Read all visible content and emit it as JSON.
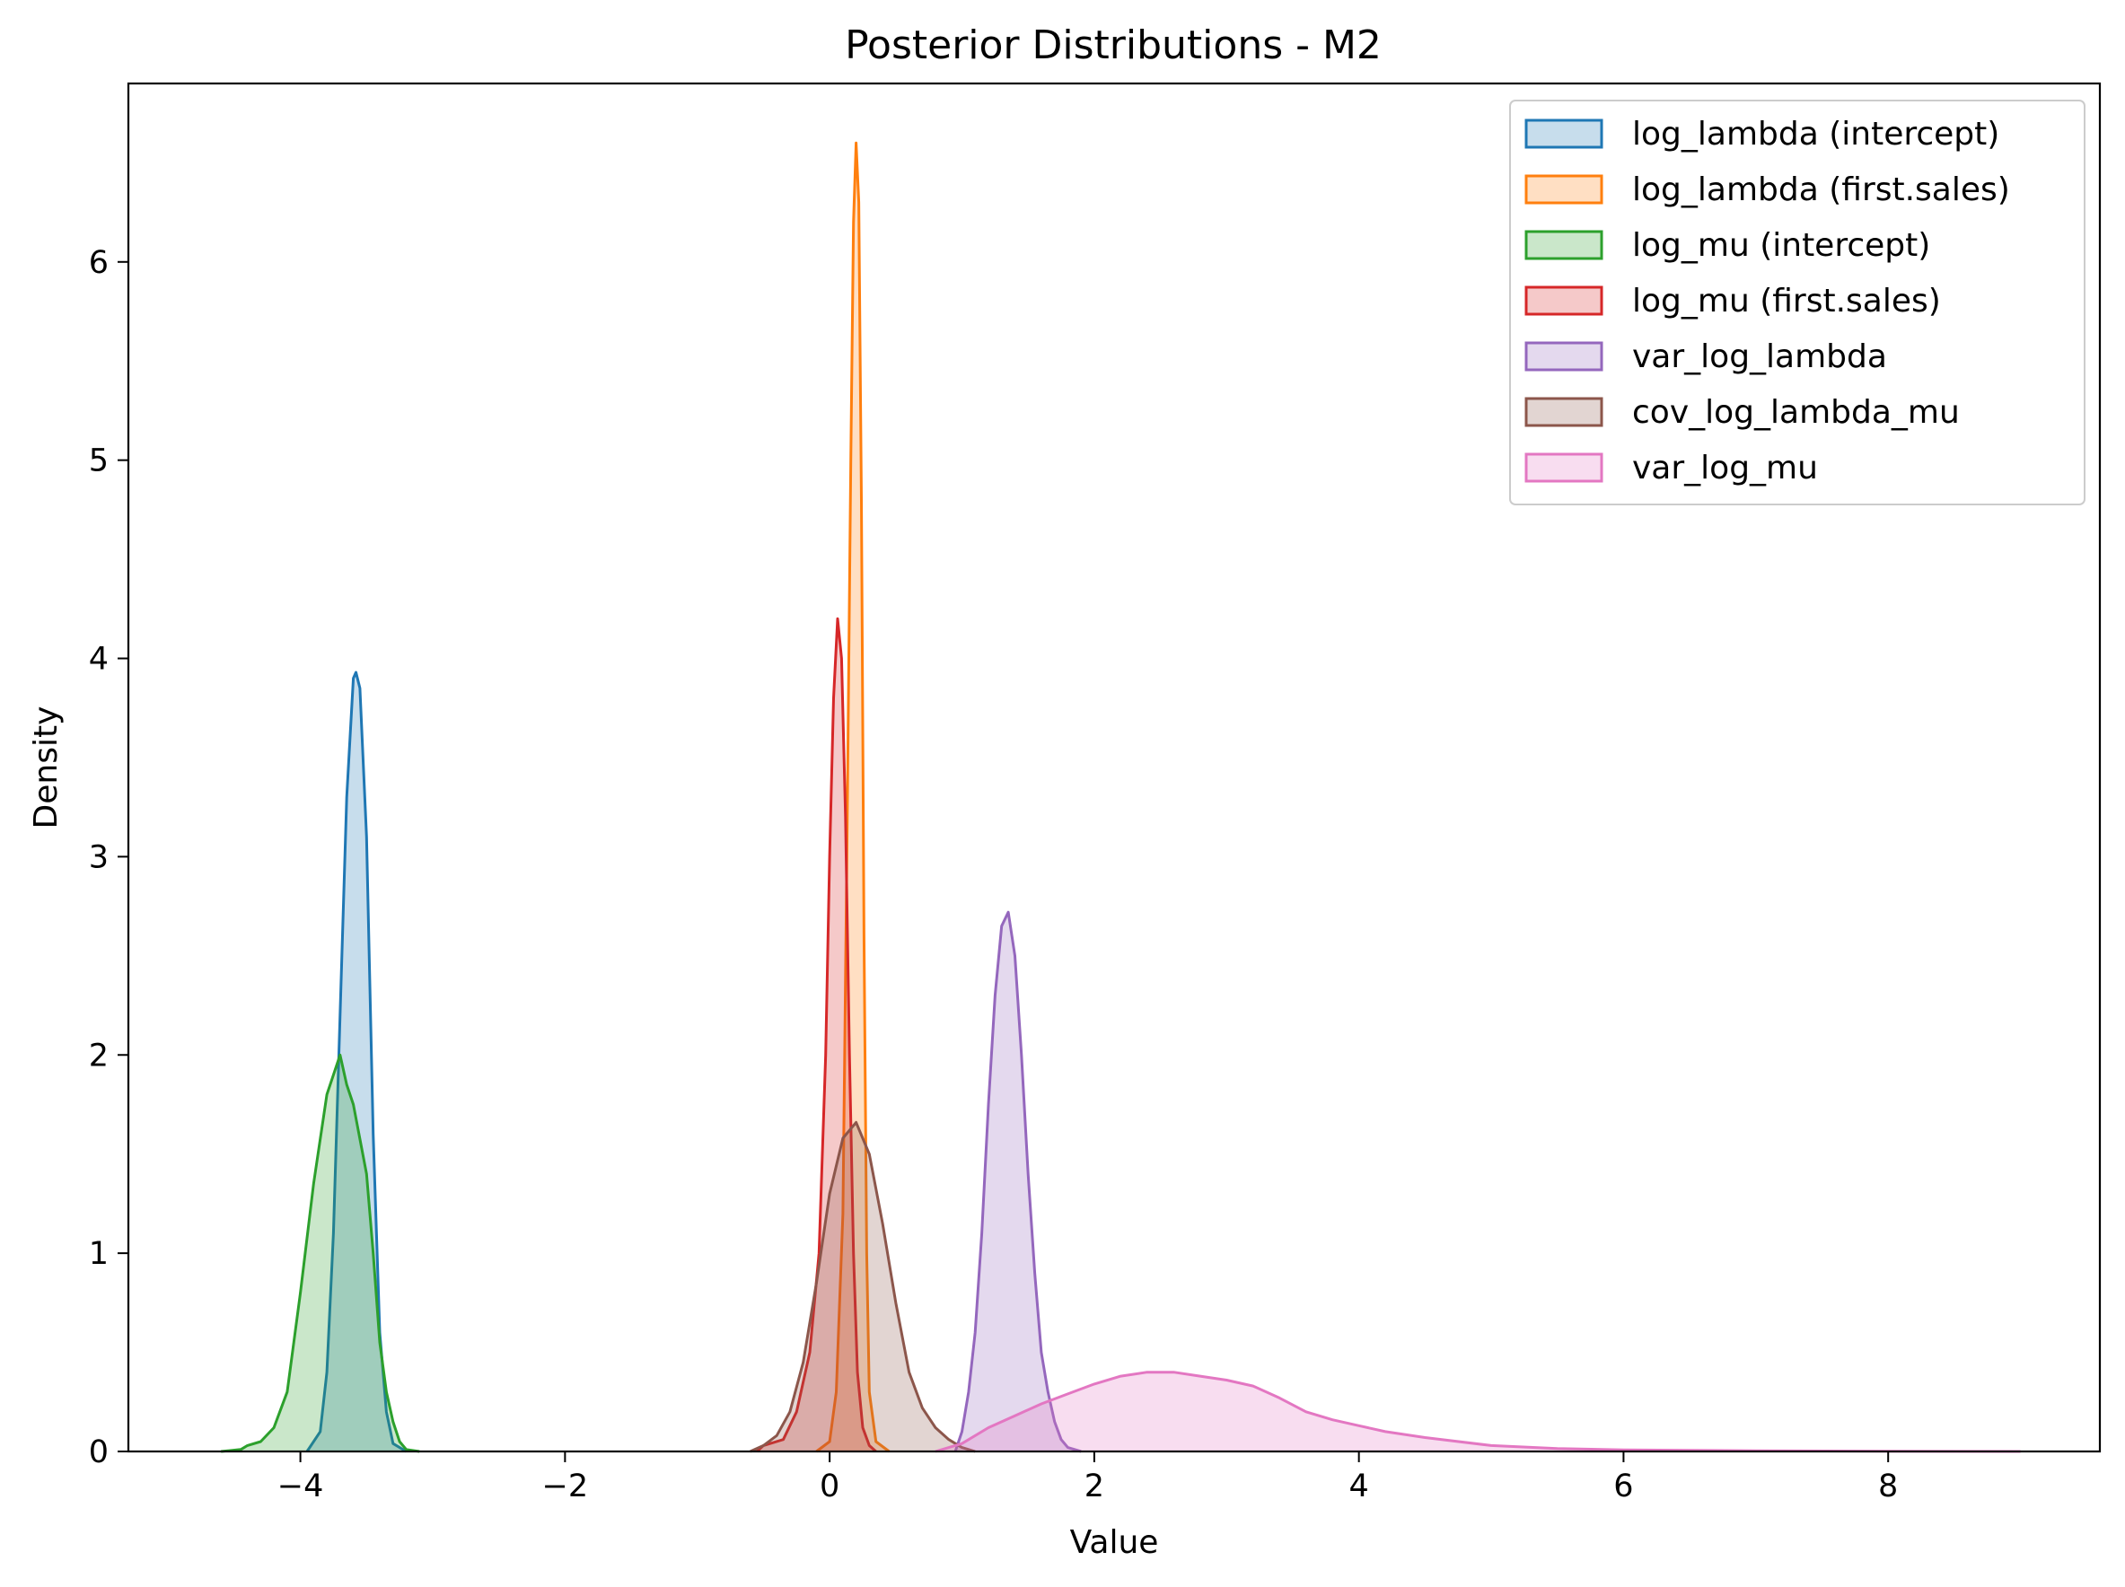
{
  "chart_data": {
    "type": "area",
    "title": "Posterior Distributions - M2",
    "xlabel": "Value",
    "ylabel": "Density",
    "xlim": [
      -5.3,
      9.6
    ],
    "ylim": [
      0,
      6.9
    ],
    "x_ticks": [
      -4,
      -2,
      0,
      2,
      4,
      6,
      8
    ],
    "x_tick_labels": [
      "−4",
      "−2",
      "0",
      "2",
      "4",
      "6",
      "8"
    ],
    "y_ticks": [
      0,
      1,
      2,
      3,
      4,
      5,
      6
    ],
    "y_tick_labels": [
      "0",
      "1",
      "2",
      "3",
      "4",
      "5",
      "6"
    ],
    "grid": false,
    "legend_position": "top-right",
    "series": [
      {
        "name": "log_lambda (intercept)",
        "color": "#1f77b4",
        "x": [
          -3.95,
          -3.85,
          -3.8,
          -3.75,
          -3.7,
          -3.65,
          -3.6,
          -3.58,
          -3.55,
          -3.5,
          -3.45,
          -3.4,
          -3.35,
          -3.3,
          -3.2
        ],
        "y": [
          0,
          0.1,
          0.4,
          1.1,
          2.2,
          3.3,
          3.9,
          3.93,
          3.85,
          3.1,
          1.6,
          0.6,
          0.2,
          0.04,
          0
        ]
      },
      {
        "name": "log_lambda (first.sales)",
        "color": "#ff7f0e",
        "x": [
          -0.1,
          0.0,
          0.05,
          0.1,
          0.13,
          0.16,
          0.18,
          0.2,
          0.22,
          0.24,
          0.26,
          0.28,
          0.3,
          0.35,
          0.45
        ],
        "y": [
          0,
          0.05,
          0.3,
          1.2,
          3.0,
          5.0,
          6.2,
          6.6,
          6.3,
          4.8,
          2.6,
          1.0,
          0.3,
          0.05,
          0
        ]
      },
      {
        "name": "log_mu (intercept)",
        "color": "#2ca02c",
        "x": [
          -4.6,
          -4.45,
          -4.4,
          -4.3,
          -4.2,
          -4.1,
          -4.0,
          -3.9,
          -3.8,
          -3.7,
          -3.65,
          -3.6,
          -3.5,
          -3.45,
          -3.4,
          -3.35,
          -3.3,
          -3.25,
          -3.2,
          -3.1
        ],
        "y": [
          0,
          0.01,
          0.03,
          0.05,
          0.12,
          0.3,
          0.8,
          1.35,
          1.8,
          2.0,
          1.85,
          1.75,
          1.4,
          1.0,
          0.55,
          0.3,
          0.15,
          0.05,
          0.01,
          0
        ]
      },
      {
        "name": "log_mu (first.sales)",
        "color": "#d62728",
        "x": [
          -0.55,
          -0.5,
          -0.45,
          -0.35,
          -0.25,
          -0.15,
          -0.08,
          -0.03,
          0.0,
          0.03,
          0.06,
          0.09,
          0.12,
          0.15,
          0.18,
          0.21,
          0.25,
          0.3,
          0.35
        ],
        "y": [
          0,
          0.03,
          0.04,
          0.06,
          0.2,
          0.5,
          1.0,
          2.0,
          3.0,
          3.8,
          4.2,
          4.0,
          3.2,
          2.0,
          1.0,
          0.4,
          0.12,
          0.03,
          0
        ]
      },
      {
        "name": "var_log_lambda",
        "color": "#9467bd",
        "x": [
          0.95,
          1.0,
          1.05,
          1.1,
          1.15,
          1.2,
          1.25,
          1.3,
          1.35,
          1.4,
          1.45,
          1.5,
          1.55,
          1.6,
          1.65,
          1.7,
          1.75,
          1.8,
          1.9
        ],
        "y": [
          0,
          0.1,
          0.3,
          0.6,
          1.1,
          1.75,
          2.3,
          2.65,
          2.72,
          2.5,
          2.0,
          1.4,
          0.9,
          0.5,
          0.3,
          0.15,
          0.06,
          0.02,
          0
        ]
      },
      {
        "name": "cov_log_lambda_mu",
        "color": "#8c564b",
        "x": [
          -0.6,
          -0.5,
          -0.4,
          -0.3,
          -0.2,
          -0.1,
          0.0,
          0.1,
          0.2,
          0.3,
          0.4,
          0.5,
          0.6,
          0.7,
          0.8,
          0.9,
          1.0,
          1.1
        ],
        "y": [
          0,
          0.03,
          0.08,
          0.2,
          0.45,
          0.85,
          1.3,
          1.58,
          1.66,
          1.5,
          1.15,
          0.75,
          0.4,
          0.22,
          0.12,
          0.06,
          0.02,
          0
        ]
      },
      {
        "name": "var_log_mu",
        "color": "#e377c2",
        "x": [
          0.8,
          1.0,
          1.2,
          1.4,
          1.6,
          1.8,
          2.0,
          2.2,
          2.4,
          2.6,
          2.8,
          3.0,
          3.2,
          3.4,
          3.6,
          3.8,
          4.0,
          4.2,
          4.5,
          5.0,
          5.5,
          6.0,
          7.0,
          8.0,
          9.0
        ],
        "y": [
          0,
          0.04,
          0.12,
          0.18,
          0.24,
          0.29,
          0.34,
          0.38,
          0.4,
          0.4,
          0.38,
          0.36,
          0.33,
          0.27,
          0.2,
          0.16,
          0.13,
          0.1,
          0.07,
          0.03,
          0.015,
          0.008,
          0.003,
          0.001,
          0
        ]
      }
    ]
  }
}
